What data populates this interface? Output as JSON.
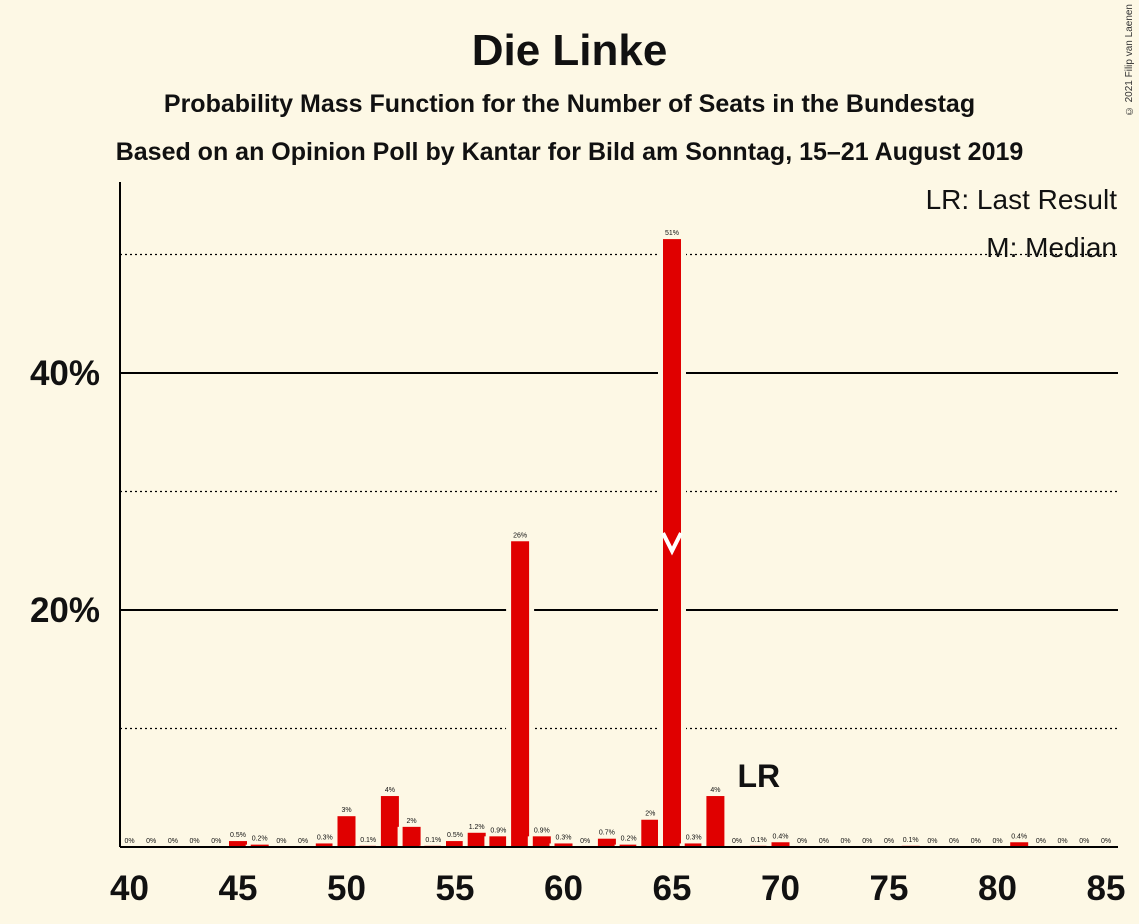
{
  "title": "Die Linke",
  "subtitle1": "Probability Mass Function for the Number of Seats in the Bundestag",
  "subtitle2": "Based on an Opinion Poll by Kantar for Bild am Sonntag, 15–21 August 2019",
  "copyright": "© 2021 Filip van Laenen",
  "legend": {
    "lr": "LR: Last Result",
    "m": "M: Median"
  },
  "colors": {
    "bar": "#e00000",
    "background": "#fdf8e5",
    "axis": "#000000"
  },
  "chart_data": {
    "type": "bar",
    "xlabel": "",
    "ylabel": "",
    "xlim": [
      40,
      85
    ],
    "ylim": [
      0,
      56
    ],
    "x_ticks": [
      40,
      45,
      50,
      55,
      60,
      65,
      70,
      75,
      80,
      85
    ],
    "y_ticks": [
      {
        "value": 20,
        "label": "20%"
      },
      {
        "value": 40,
        "label": "40%"
      }
    ],
    "dotted_gridlines": [
      10,
      30,
      50
    ],
    "solid_gridlines": [
      20,
      40
    ],
    "categories": [
      40,
      41,
      42,
      43,
      44,
      45,
      46,
      47,
      48,
      49,
      50,
      51,
      52,
      53,
      54,
      55,
      56,
      57,
      58,
      59,
      60,
      61,
      62,
      63,
      64,
      65,
      66,
      67,
      68,
      69,
      70,
      71,
      72,
      73,
      74,
      75,
      76,
      77,
      78,
      79,
      80,
      81,
      82,
      83,
      84,
      85
    ],
    "values": [
      0,
      0,
      0,
      0,
      0,
      0.5,
      0.2,
      0,
      0,
      0.3,
      2.6,
      0.1,
      4.3,
      1.7,
      0.1,
      0.5,
      1.2,
      0.9,
      25.8,
      0.9,
      0.3,
      0,
      0.7,
      0.2,
      2.3,
      51.3,
      0.3,
      4.3,
      0,
      0.1,
      0.4,
      0,
      0,
      0,
      0,
      0,
      0.1,
      0,
      0,
      0,
      0,
      0.4,
      0,
      0,
      0,
      0
    ],
    "labels": [
      "0%",
      "0%",
      "0%",
      "0%",
      "0%",
      "0.5%",
      "0.2%",
      "0%",
      "0%",
      "0.3%",
      "3%",
      "0.1%",
      "4%",
      "2%",
      "0.1%",
      "0.5%",
      "1.2%",
      "0.9%",
      "26%",
      "0.9%",
      "0.3%",
      "0%",
      "0.7%",
      "0.2%",
      "2%",
      "51%",
      "0.3%",
      "4%",
      "0%",
      "0.1%",
      "0.4%",
      "0%",
      "0%",
      "0%",
      "0%",
      "0%",
      "0.1%",
      "0%",
      "0%",
      "0%",
      "0%",
      "0.4%",
      "0%",
      "0%",
      "0%",
      "0%"
    ],
    "last_result": {
      "seats": 69,
      "label": "LR"
    },
    "median": {
      "seats": 65
    },
    "legend_position": "top-right"
  }
}
